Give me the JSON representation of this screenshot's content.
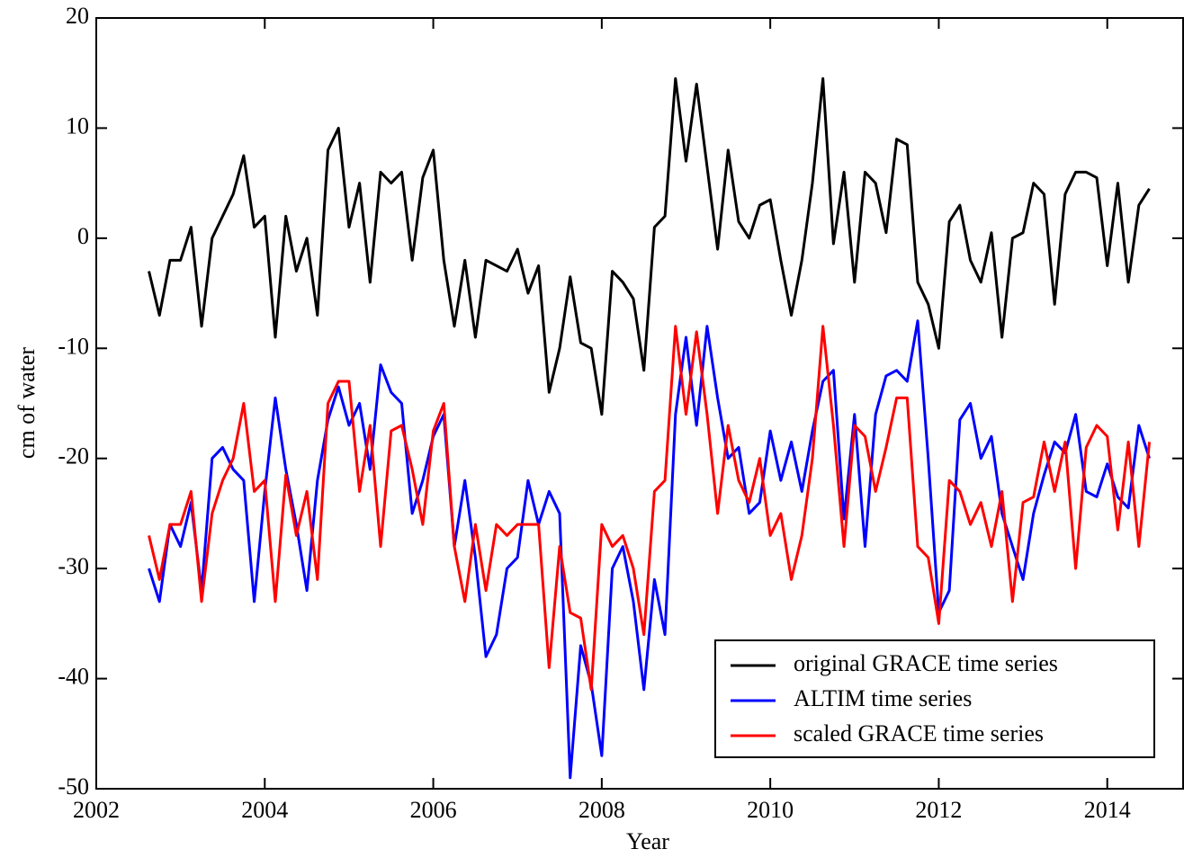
{
  "chart_data": {
    "type": "line",
    "x_label": "Year",
    "y_label": "cm of water",
    "xlim": [
      2002,
      2014.9
    ],
    "ylim": [
      -50,
      20
    ],
    "xticks": [
      2002,
      2004,
      2006,
      2008,
      2010,
      2012,
      2014
    ],
    "yticks": [
      -50,
      -40,
      -30,
      -20,
      -10,
      0,
      10,
      20
    ],
    "legend": "lower right",
    "x": [
      2002.625,
      2002.75,
      2002.875,
      2003,
      2003.125,
      2003.25,
      2003.375,
      2003.5,
      2003.625,
      2003.75,
      2003.875,
      2004,
      2004.125,
      2004.25,
      2004.375,
      2004.5,
      2004.625,
      2004.75,
      2004.875,
      2005,
      2005.125,
      2005.25,
      2005.375,
      2005.5,
      2005.625,
      2005.75,
      2005.875,
      2006,
      2006.125,
      2006.25,
      2006.375,
      2006.5,
      2006.625,
      2006.75,
      2006.875,
      2007,
      2007.125,
      2007.25,
      2007.375,
      2007.5,
      2007.625,
      2007.75,
      2007.875,
      2008,
      2008.125,
      2008.25,
      2008.375,
      2008.5,
      2008.625,
      2008.75,
      2008.875,
      2009,
      2009.125,
      2009.25,
      2009.375,
      2009.5,
      2009.625,
      2009.75,
      2009.875,
      2010,
      2010.125,
      2010.25,
      2010.375,
      2010.5,
      2010.625,
      2010.75,
      2010.875,
      2011,
      2011.125,
      2011.25,
      2011.375,
      2011.5,
      2011.625,
      2011.75,
      2011.875,
      2012,
      2012.125,
      2012.25,
      2012.375,
      2012.5,
      2012.625,
      2012.75,
      2012.875,
      2013,
      2013.125,
      2013.25,
      2013.375,
      2013.5,
      2013.625,
      2013.75,
      2013.875,
      2014,
      2014.125,
      2014.25,
      2014.375,
      2014.5
    ],
    "series": [
      {
        "name": "original GRACE time series",
        "color": "#000000",
        "values": [
          -3,
          -7,
          -2,
          -2,
          1,
          -8,
          0,
          2,
          4,
          7.5,
          1,
          2,
          -9,
          2,
          -3,
          0,
          -7,
          8,
          10,
          1,
          5,
          -4,
          6,
          5,
          6,
          -2,
          5.5,
          8,
          -2,
          -8,
          -2,
          -9,
          -2,
          -2.5,
          -3,
          -1,
          -5,
          -2.5,
          -14,
          -10,
          -3.5,
          -9.5,
          -10,
          -16,
          -3,
          -4,
          -5.5,
          -12,
          1,
          2,
          14.5,
          7,
          14,
          6.5,
          -1,
          8,
          1.5,
          0,
          3,
          3.5,
          -2,
          -7,
          -2,
          5,
          14.5,
          -0.5,
          6,
          -4,
          6,
          5,
          0.5,
          9,
          8.5,
          -4,
          -6,
          -10,
          1.5,
          3,
          -2,
          -4,
          0.5,
          -9,
          0,
          0.5,
          5,
          4,
          -6,
          4,
          6,
          6,
          5.5,
          -2.5,
          5,
          -4,
          3,
          4.5
        ]
      },
      {
        "name": "ALTIM time series",
        "color": "#0000ff",
        "values": [
          -30,
          -33,
          -26,
          -28,
          -24,
          -32,
          -20,
          -19,
          -21,
          -22,
          -33,
          -23,
          -14.5,
          -21,
          -26,
          -32,
          -22,
          -16.5,
          -13.5,
          -17,
          -15,
          -21,
          -11.5,
          -14,
          -15,
          -25,
          -22,
          -18,
          -16,
          -28,
          -22,
          -29,
          -38,
          -36,
          -30,
          -29,
          -22,
          -26,
          -23,
          -25,
          -49,
          -37,
          -40.5,
          -47,
          -30,
          -28,
          -33,
          -41,
          -31,
          -36,
          -16,
          -9,
          -17,
          -8,
          -14.5,
          -20,
          -19,
          -25,
          -24,
          -17.5,
          -22,
          -18.5,
          -23,
          -17.5,
          -13,
          -12,
          -25.5,
          -16,
          -28,
          -16,
          -12.5,
          -12,
          -13,
          -7.5,
          -20,
          -34,
          -32,
          -16.5,
          -15,
          -20,
          -18,
          -25,
          -28,
          -31,
          -25,
          -21.5,
          -18.5,
          -19.5,
          -16,
          -23,
          -23.5,
          -20.5,
          -23.5,
          -24.5,
          -17,
          -20
        ]
      },
      {
        "name": "scaled GRACE time series",
        "color": "#ff0000",
        "values": [
          -27,
          -31,
          -26,
          -26,
          -23,
          -33,
          -25,
          -22,
          -20,
          -15,
          -23,
          -22,
          -33,
          -21.5,
          -27,
          -23,
          -31,
          -15,
          -13,
          -13,
          -23,
          -17,
          -28,
          -17.5,
          -17,
          -21,
          -26,
          -17.5,
          -15,
          -28,
          -33,
          -26,
          -32,
          -26,
          -27,
          -26,
          -26,
          -26,
          -39,
          -28,
          -34,
          -34.5,
          -41,
          -26,
          -28,
          -27,
          -30,
          -36,
          -23,
          -22,
          -8,
          -16,
          -8.5,
          -16,
          -25,
          -17,
          -22,
          -24,
          -20,
          -27,
          -25,
          -31,
          -27,
          -20,
          -8,
          -17,
          -28,
          -17,
          -18,
          -23,
          -19,
          -14.5,
          -14.5,
          -28,
          -29,
          -35,
          -22,
          -23,
          -26,
          -24,
          -28,
          -23,
          -33,
          -24,
          -23.5,
          -18.5,
          -23,
          -18.5,
          -30,
          -19,
          -17,
          -18,
          -26.5,
          -18.5,
          -28,
          -18.5
        ]
      }
    ]
  }
}
